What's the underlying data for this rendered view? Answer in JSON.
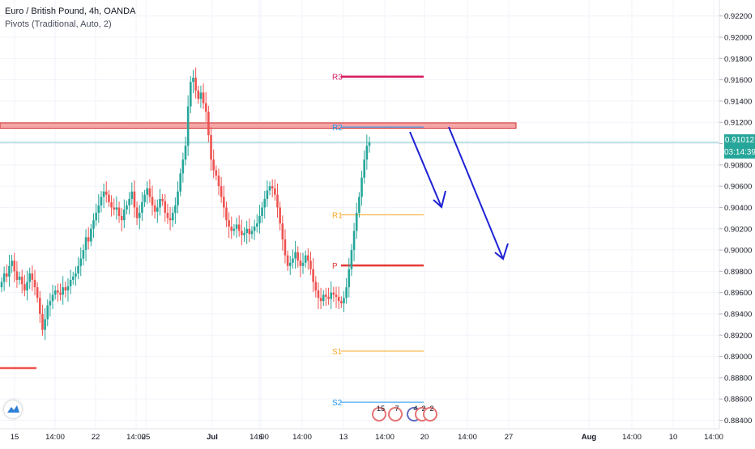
{
  "header": {
    "symbol_line": "Euro / British Pound, 4h, OANDA",
    "indicator_line": "Pivots (Traditional, Auto, 2)"
  },
  "price_axis": {
    "ticks": [
      "0.92200",
      "0.92000",
      "0.91800",
      "0.91600",
      "0.91400",
      "0.91200",
      "0.91000",
      "0.90800",
      "0.90600",
      "0.90400",
      "0.90200",
      "0.90000",
      "0.89800",
      "0.89600",
      "0.89400",
      "0.89200",
      "0.89000",
      "0.88800",
      "0.88600",
      "0.88400"
    ],
    "ticks_values": [
      0.922,
      0.92,
      0.918,
      0.916,
      0.914,
      0.912,
      0.91,
      0.908,
      0.906,
      0.904,
      0.902,
      0.9,
      0.898,
      0.896,
      0.894,
      0.892,
      0.89,
      0.888,
      0.886,
      0.884
    ],
    "current_price": "0.91012",
    "current_price_value": 0.91012,
    "countdown": "03:14:39"
  },
  "time_axis": {
    "labels": [
      "15",
      "14:00",
      "22",
      "14:00",
      "25",
      "Jul",
      "14:00",
      "6",
      "14:00",
      "13",
      "14:00",
      "20",
      "14:00",
      "27",
      "Aug",
      "14:00",
      "10",
      "14:00"
    ],
    "bold_labels": [
      "Jul",
      "Aug"
    ]
  },
  "pivots": [
    {
      "label": "R3",
      "value": 0.9163,
      "color": "#d81b60"
    },
    {
      "label": "R2",
      "value": 0.91155,
      "color": "#2196f3"
    },
    {
      "label": "R1",
      "value": 0.9033,
      "color": "#f9a825"
    },
    {
      "label": "P",
      "value": 0.89855,
      "color": "#e53935"
    },
    {
      "label": "S1",
      "value": 0.8905,
      "color": "#f9a825"
    },
    {
      "label": "S2",
      "value": 0.8857,
      "color": "#2196f3"
    }
  ],
  "resistance_zone": {
    "top": 0.91195,
    "bottom": 0.91145
  },
  "earnings_badges": [
    "15",
    "7",
    "4",
    "2",
    "2"
  ],
  "colors": {
    "up": "#26a69a",
    "down": "#ef5350",
    "arrow": "#1e22d4",
    "zone_fill": "#f4a6a6",
    "zone_border": "#d32f2f",
    "current_line": "#26a69a",
    "axis_text": "#131722"
  },
  "chart_data": {
    "type": "candlestick",
    "title": "Euro / British Pound, 4h, OANDA",
    "ylim": [
      0.8832,
      0.9235
    ],
    "series": [
      {
        "name": "EUR/GBP 4h close",
        "values": [
          0.897,
          0.8978,
          0.8975,
          0.8985,
          0.899,
          0.898,
          0.8972,
          0.8975,
          0.8968,
          0.8962,
          0.897,
          0.8978,
          0.8972,
          0.8965,
          0.8955,
          0.894,
          0.8925,
          0.8935,
          0.8948,
          0.8952,
          0.8958,
          0.8962,
          0.896,
          0.8958,
          0.8965,
          0.8962,
          0.8966,
          0.8972,
          0.8975,
          0.8978,
          0.8985,
          0.8992,
          0.9,
          0.9012,
          0.9008,
          0.902,
          0.9028,
          0.9035,
          0.9042,
          0.905,
          0.9055,
          0.9052,
          0.9045,
          0.904,
          0.9038,
          0.904,
          0.9032,
          0.9028,
          0.9038,
          0.9042,
          0.9048,
          0.9055,
          0.904,
          0.903,
          0.9035,
          0.9045,
          0.9052,
          0.9058,
          0.905,
          0.9042,
          0.9036,
          0.904,
          0.9048,
          0.9046,
          0.9035,
          0.903,
          0.9028,
          0.9035,
          0.9042,
          0.9055,
          0.9072,
          0.9085,
          0.9098,
          0.9135,
          0.9158,
          0.9162,
          0.915,
          0.9142,
          0.9148,
          0.9138,
          0.913,
          0.9108,
          0.9085,
          0.9075,
          0.907,
          0.906,
          0.905,
          0.904,
          0.9028,
          0.9022,
          0.9018,
          0.902,
          0.9024,
          0.9018,
          0.9014,
          0.9016,
          0.902,
          0.9015,
          0.9018,
          0.9022,
          0.9025,
          0.9032,
          0.904,
          0.9048,
          0.9056,
          0.906,
          0.9058,
          0.9052,
          0.904,
          0.9025,
          0.901,
          0.8995,
          0.8985,
          0.8988,
          0.8992,
          0.8998,
          0.899,
          0.8985,
          0.8988,
          0.8995,
          0.899,
          0.8982,
          0.897,
          0.8962,
          0.8955,
          0.8952,
          0.8958,
          0.8956,
          0.8954,
          0.896,
          0.8958,
          0.8956,
          0.8952,
          0.895,
          0.8955,
          0.8965,
          0.8982,
          0.9,
          0.9018,
          0.9035,
          0.905,
          0.9068,
          0.9085,
          0.9098,
          0.9101
        ]
      }
    ]
  }
}
